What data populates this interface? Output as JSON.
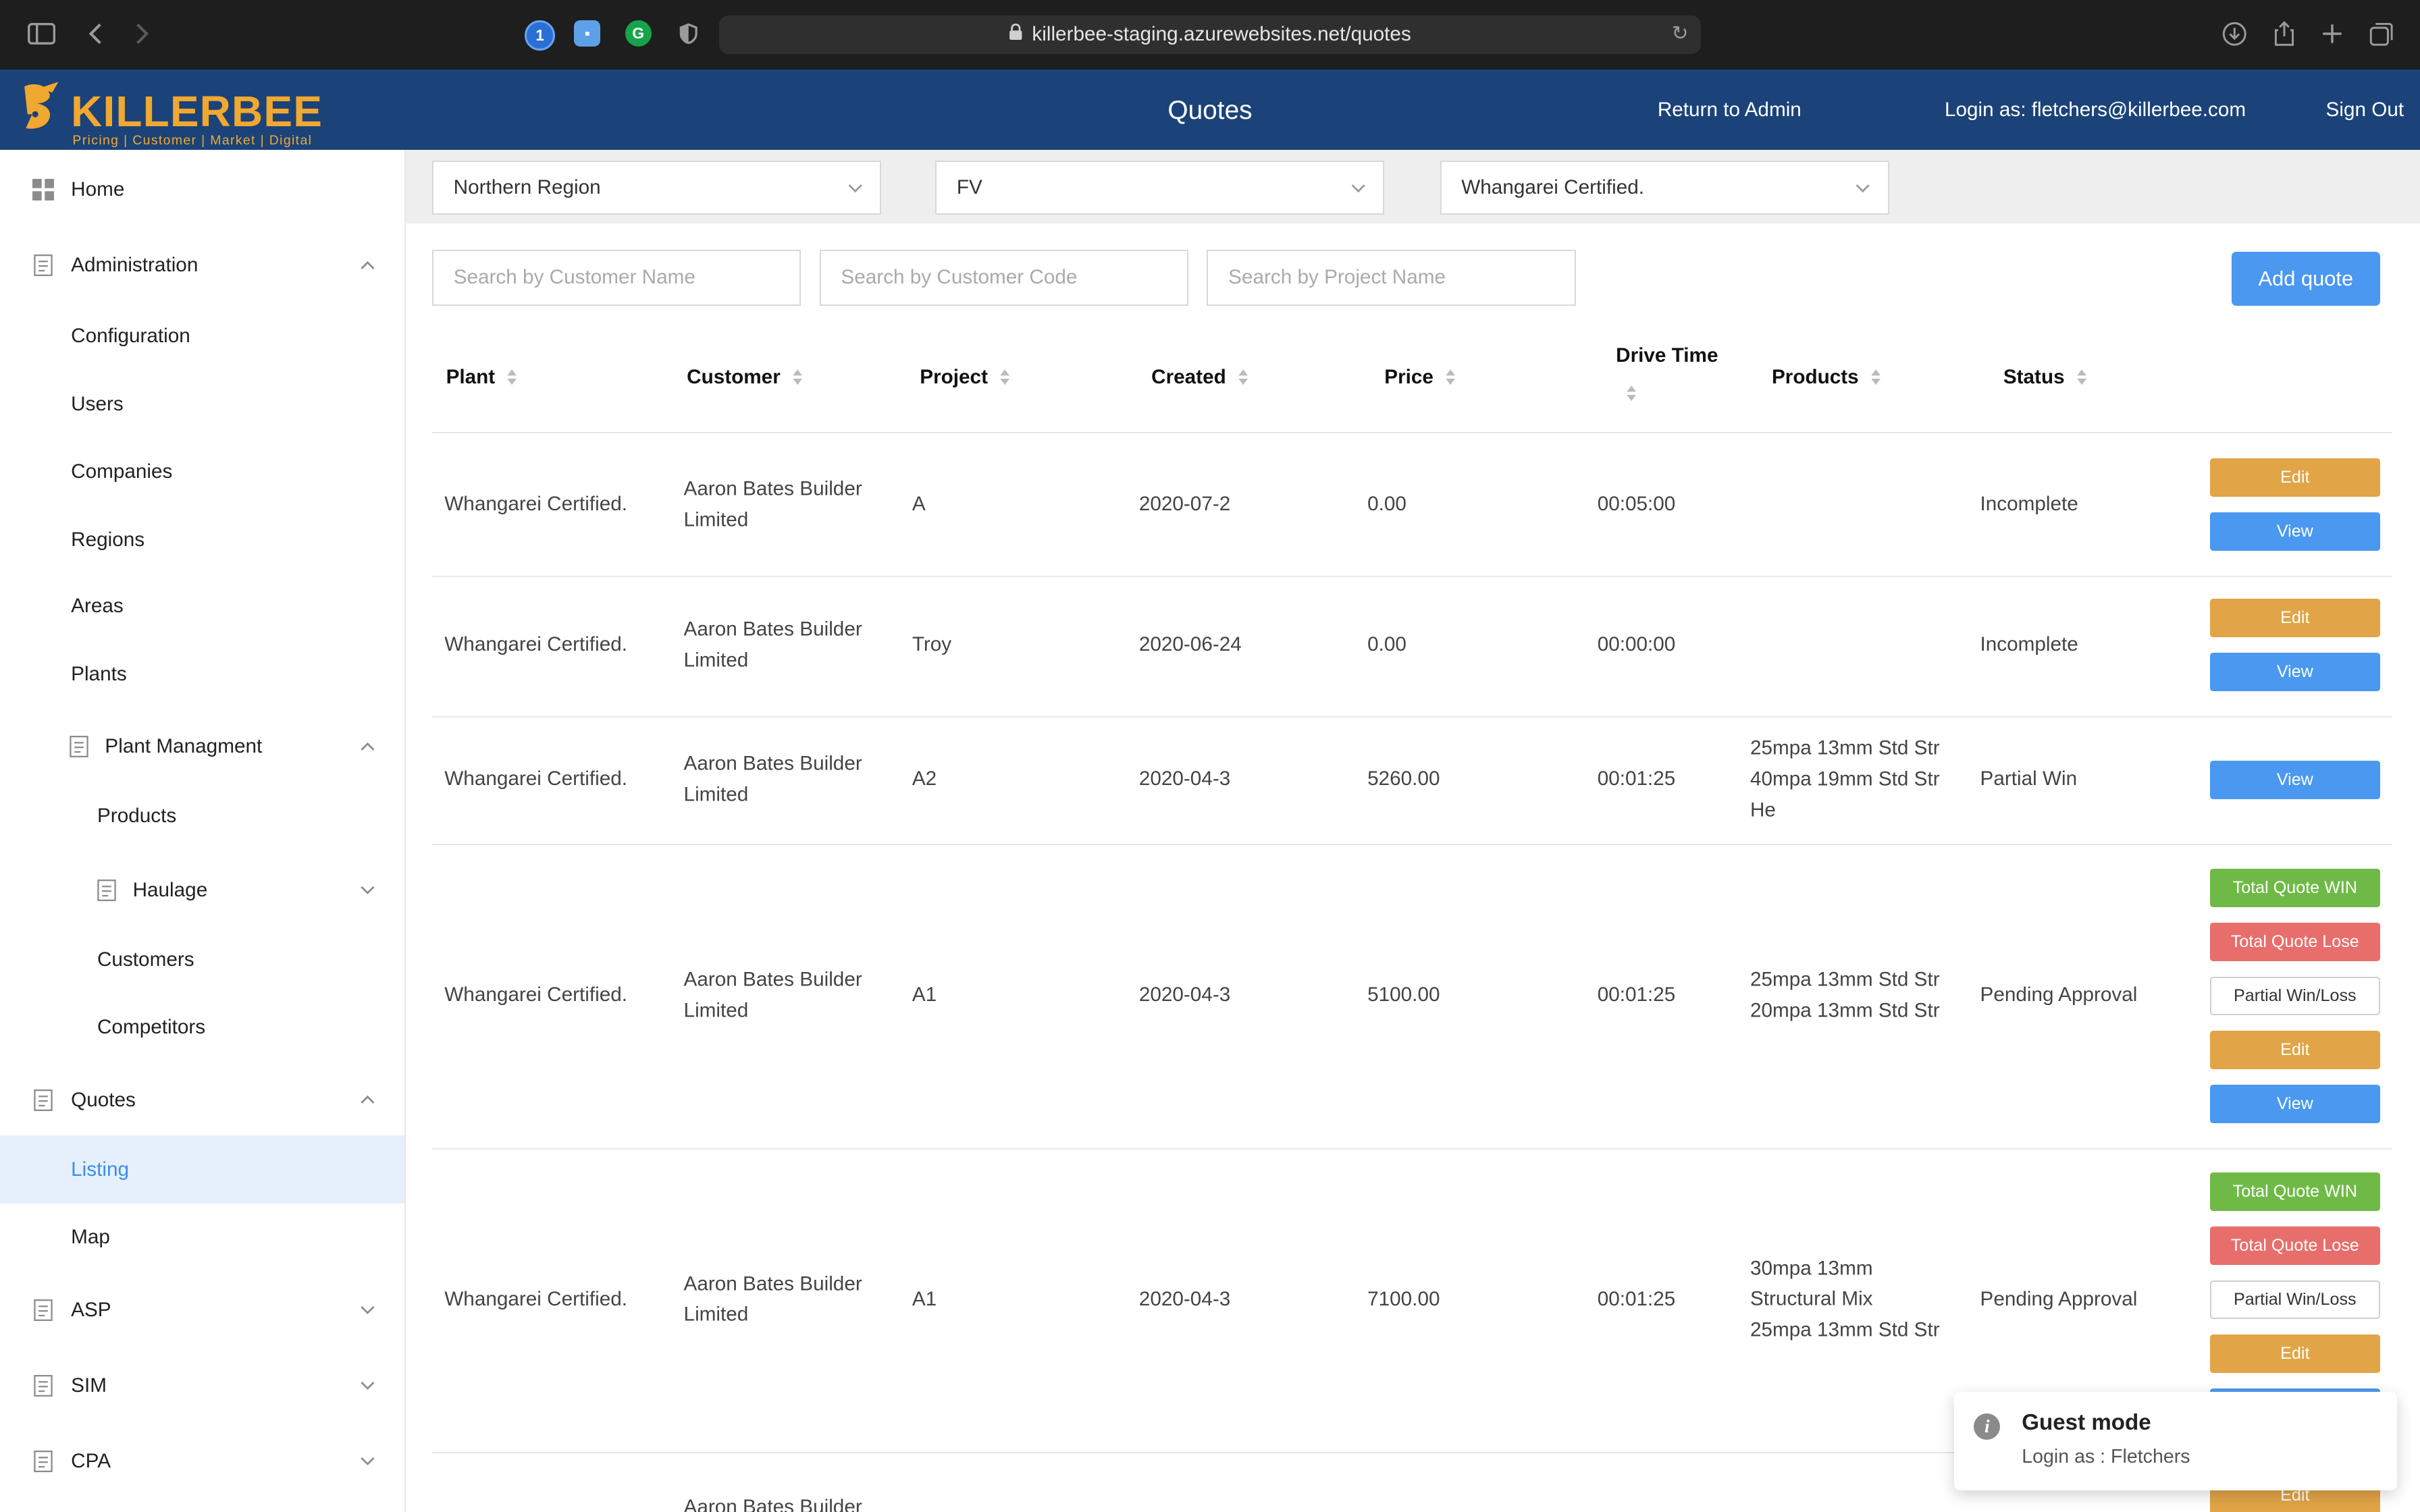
{
  "browser": {
    "url": "killerbee-staging.azurewebsites.net/quotes",
    "extensions": [
      "1password-icon",
      "bitwarden-icon",
      "grammarly-icon",
      "shield-icon"
    ]
  },
  "header": {
    "logo_text": "KILLERBEE",
    "logo_tagline": "Pricing | Customer | Market | Digital",
    "title": "Quotes",
    "return_link": "Return to Admin",
    "login_as": "Login as: fletchers@killerbee.com",
    "sign_out": "Sign Out"
  },
  "sidebar": {
    "home": "Home",
    "administration": "Administration",
    "configuration": "Configuration",
    "users": "Users",
    "companies": "Companies",
    "regions": "Regions",
    "areas": "Areas",
    "plants": "Plants",
    "plant_management": "Plant Managment",
    "products": "Products",
    "haulage": "Haulage",
    "customers": "Customers",
    "competitors": "Competitors",
    "quotes": "Quotes",
    "listing": "Listing",
    "map": "Map",
    "asp": "ASP",
    "sim": "SIM",
    "cpa": "CPA"
  },
  "filters": {
    "region": "Northern Region",
    "code": "FV",
    "plant": "Whangarei Certified."
  },
  "search": {
    "customer_name": "Search by Customer Name",
    "customer_code": "Search by Customer Code",
    "project_name": "Search by Project Name"
  },
  "add_quote": "Add quote",
  "columns": {
    "plant": "Plant",
    "customer": "Customer",
    "project": "Project",
    "created": "Created",
    "price": "Price",
    "drive_time": "Drive Time",
    "products": "Products",
    "status": "Status"
  },
  "buttons": {
    "edit": "Edit",
    "view": "View",
    "total_win": "Total Quote WIN",
    "total_lose": "Total Quote Lose",
    "partial": "Partial Win/Loss"
  },
  "rows": [
    {
      "plant": "Whangarei Certified.",
      "customer_1": "Aaron Bates Builder",
      "customer_2": "Limited",
      "project": "A",
      "created": "2020-07-2",
      "price": "0.00",
      "drive_time": "00:05:00",
      "product_1": "",
      "product_2": "",
      "product_3": "",
      "status": "Incomplete"
    },
    {
      "plant": "Whangarei Certified.",
      "customer_1": "Aaron Bates Builder",
      "customer_2": "Limited",
      "project": "Troy",
      "created": "2020-06-24",
      "price": "0.00",
      "drive_time": "00:00:00",
      "product_1": "",
      "product_2": "",
      "product_3": "",
      "status": "Incomplete"
    },
    {
      "plant": "Whangarei Certified.",
      "customer_1": "Aaron Bates Builder",
      "customer_2": "Limited",
      "project": "A2",
      "created": "2020-04-3",
      "price": "5260.00",
      "drive_time": "00:01:25",
      "product_1": "25mpa 13mm Std Str",
      "product_2": "40mpa 19mm Std Str",
      "product_3": "He",
      "status": "Partial Win"
    },
    {
      "plant": "Whangarei Certified.",
      "customer_1": "Aaron Bates Builder",
      "customer_2": "Limited",
      "project": "A1",
      "created": "2020-04-3",
      "price": "5100.00",
      "drive_time": "00:01:25",
      "product_1": "25mpa 13mm Std Str",
      "product_2": "20mpa 13mm Std Str",
      "product_3": "",
      "status": "Pending Approval"
    },
    {
      "plant": "Whangarei Certified.",
      "customer_1": "Aaron Bates Builder",
      "customer_2": "Limited",
      "project": "A1",
      "created": "2020-04-3",
      "price": "7100.00",
      "drive_time": "00:01:25",
      "product_1": "30mpa 13mm",
      "product_2": "Structural Mix",
      "product_3": "25mpa 13mm Std Str",
      "status": "Pending Approval"
    },
    {
      "customer_1": "Aaron Bates Builder"
    }
  ],
  "toast": {
    "title": "Guest mode",
    "message": "Login as : Fletchers"
  },
  "colors": {
    "header_bg": "#1b4379",
    "logo": "#f0a830",
    "primary": "#4a98ef",
    "edit": "#e1a446",
    "win": "#6fba47",
    "lose": "#e86e6b",
    "sidebar_active_bg": "#e6f0fc"
  }
}
